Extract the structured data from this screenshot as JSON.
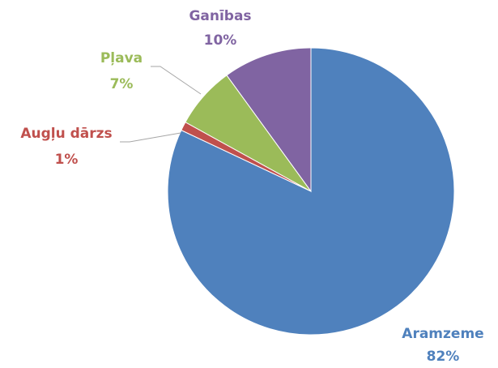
{
  "chart_data": {
    "type": "pie",
    "categories": [
      "Aramzeme",
      "Augļu dārzs",
      "Pļava",
      "Ganības"
    ],
    "values": [
      82,
      1,
      7,
      10
    ],
    "value_labels": [
      "82%",
      "1%",
      "7%",
      "10%"
    ],
    "colors": [
      "#4f81bd",
      "#c0504d",
      "#9bbb59",
      "#8064a2"
    ]
  }
}
